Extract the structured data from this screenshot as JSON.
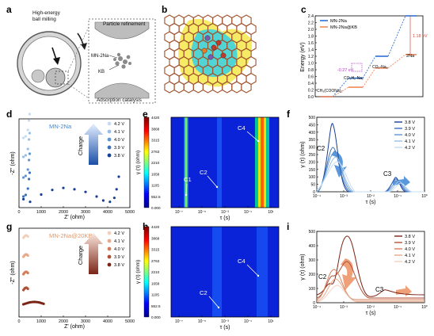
{
  "panel_letters": [
    "a",
    "b",
    "c",
    "d",
    "e",
    "f",
    "g",
    "h",
    "i"
  ],
  "panel_a": {
    "label_top": "High-energy\nball milling",
    "label_particle": "Particle refinement",
    "label_mn": "MN-2Na",
    "label_kb": "KB",
    "label_adsorption": "Adsorption catalysis"
  },
  "chart_data": [
    {
      "panel": "c",
      "type": "line",
      "ylabel": "Energy (eV)",
      "ylim": [
        0,
        2.4
      ],
      "yticks": [
        "0.0",
        "0.2",
        "0.4",
        "0.6",
        "0.8",
        "1.0",
        "1.2",
        "1.4",
        "1.6",
        "1.8",
        "2.0",
        "2.2",
        "2.4"
      ],
      "legend": [
        "MN-2Na",
        "MN-2Na@KB"
      ],
      "colors": {
        "MN-2Na": "#2f6fd6",
        "MN-2Na@KB": "#f08a5d",
        "annot_027": "#b93bc9",
        "annot_118": "#d64b3b"
      },
      "species": [
        "CH₃(COONa)₂",
        "CO₂H₂-Na₂",
        "CO₂-Na₂",
        "2Na"
      ],
      "series": [
        {
          "name": "MN-2Na",
          "values": [
            0.0,
            0.55,
            1.2,
            2.4
          ]
        },
        {
          "name": "MN-2Na@KB",
          "values": [
            0.0,
            0.28,
            0.85,
            1.25
          ]
        }
      ],
      "annotations": [
        "-0.27 eV",
        "1.18 eV"
      ]
    },
    {
      "panel": "d",
      "type": "scatter",
      "title": "MN-2Na",
      "xlabel": "Z' (ohm)",
      "ylabel": "-Z'' (ohm)",
      "xlim": [
        0,
        5000
      ],
      "xticks": [
        "0",
        "1000",
        "2000",
        "3000",
        "4000",
        "5000"
      ],
      "legend_title": "Charge",
      "series": [
        {
          "name": "4.2 V",
          "color": "#c6dcf2",
          "points": [
            [
              200,
              1150
            ],
            [
              300,
              1100
            ],
            [
              400,
              1300
            ],
            [
              450,
              1700
            ]
          ]
        },
        {
          "name": "4.1 V",
          "color": "#98bfe6",
          "points": [
            [
              200,
              880
            ],
            [
              300,
              830
            ],
            [
              400,
              980
            ],
            [
              450,
              1250
            ]
          ]
        },
        {
          "name": "4.0 V",
          "color": "#5f96d2",
          "points": [
            [
              200,
              610
            ],
            [
              300,
              560
            ],
            [
              400,
              720
            ],
            [
              460,
              980
            ]
          ]
        },
        {
          "name": "3.9 V",
          "color": "#3b70bb",
          "points": [
            [
              200,
              330
            ],
            [
              300,
              280
            ],
            [
              400,
              400
            ],
            [
              480,
              620
            ]
          ]
        },
        {
          "name": "3.8 V",
          "color": "#173f94",
          "points": [
            [
              200,
              80
            ],
            [
              500,
              40
            ],
            [
              1000,
              150
            ],
            [
              1500,
              220
            ],
            [
              2000,
              250
            ],
            [
              2500,
              230
            ],
            [
              3000,
              190
            ],
            [
              3500,
              120
            ],
            [
              3800,
              60
            ],
            [
              4100,
              40
            ],
            [
              4300,
              100
            ],
            [
              4400,
              230
            ],
            [
              4500,
              420
            ]
          ]
        }
      ]
    },
    {
      "panel": "e",
      "type": "heatmap",
      "ylabel": "γ (τ) (ohm)",
      "xlabel": "τ (s)",
      "colorbar_ticks": [
        "4420",
        "3868",
        "3315",
        "2763",
        "2210",
        "1658",
        "1105",
        "552.5",
        "0.000"
      ],
      "xticks": [
        "10⁻⁷",
        "10⁻⁵",
        "10⁻³",
        "10⁻¹",
        "10¹"
      ],
      "peaks": [
        "C1",
        "C2",
        "C4"
      ]
    },
    {
      "panel": "f",
      "type": "line",
      "ylabel": "γ (τ) (ohm)",
      "xlabel": "τ (s)",
      "ylim": [
        0,
        500
      ],
      "yticks": [
        "0",
        "50",
        "100",
        "150",
        "200",
        "250",
        "300",
        "350",
        "400",
        "450",
        "500"
      ],
      "xticks": [
        "10⁻⁴",
        "10⁻³",
        "10⁻²",
        "10⁻¹",
        "10⁰"
      ],
      "series": [
        {
          "name": "3.8 V",
          "color": "#173f94"
        },
        {
          "name": "3.9 V",
          "color": "#3b70bb"
        },
        {
          "name": "4.0 V",
          "color": "#5f96d2"
        },
        {
          "name": "4.1 V",
          "color": "#98bfe6"
        },
        {
          "name": "4.2 V",
          "color": "#c6dcf2"
        }
      ],
      "peak_labels": [
        "C2",
        "C3"
      ]
    },
    {
      "panel": "g",
      "type": "scatter",
      "title": "MN-2Na@20KB",
      "xlabel": "Z' (ohm)",
      "ylabel": "-Z'' (ohm)",
      "xlim": [
        0,
        5000
      ],
      "xticks": [
        "0",
        "1000",
        "2000",
        "3000",
        "4000",
        "5000"
      ],
      "legend_title": "Charge",
      "series": [
        {
          "name": "4.2 V",
          "color": "#f3d0bd"
        },
        {
          "name": "4.1 V",
          "color": "#e7a98a"
        },
        {
          "name": "4.0 V",
          "color": "#d47f5c"
        },
        {
          "name": "3.9 V",
          "color": "#b0523a"
        },
        {
          "name": "3.8 V",
          "color": "#7a2416"
        }
      ]
    },
    {
      "panel": "h",
      "type": "heatmap",
      "ylabel": "γ (τ) (ohm)",
      "xlabel": "τ (s)",
      "colorbar_ticks": [
        "4420",
        "3868",
        "3315",
        "2763",
        "2210",
        "1658",
        "1105",
        "552.5",
        "0.000"
      ],
      "xticks": [
        "10⁻⁷",
        "10⁻⁵",
        "10⁻³",
        "10⁻¹",
        "10¹"
      ],
      "peaks": [
        "C2",
        "C4"
      ]
    },
    {
      "panel": "i",
      "type": "line",
      "ylabel": "γ (τ) (ohm)",
      "xlabel": "τ (s)",
      "ylim": [
        0,
        500
      ],
      "yticks": [
        "0",
        "100",
        "200",
        "300",
        "400",
        "500"
      ],
      "xticks": [
        "10⁻⁴",
        "10⁻³",
        "10⁻²",
        "10⁻¹",
        "10⁰"
      ],
      "series": [
        {
          "name": "3.8 V",
          "color": "#7a2416"
        },
        {
          "name": "3.9 V",
          "color": "#b0523a"
        },
        {
          "name": "4.0 V",
          "color": "#d47f5c"
        },
        {
          "name": "4.1 V",
          "color": "#e7a98a"
        },
        {
          "name": "4.2 V",
          "color": "#f3d0bd"
        }
      ],
      "peak_labels": [
        "C2",
        "C3"
      ]
    }
  ]
}
